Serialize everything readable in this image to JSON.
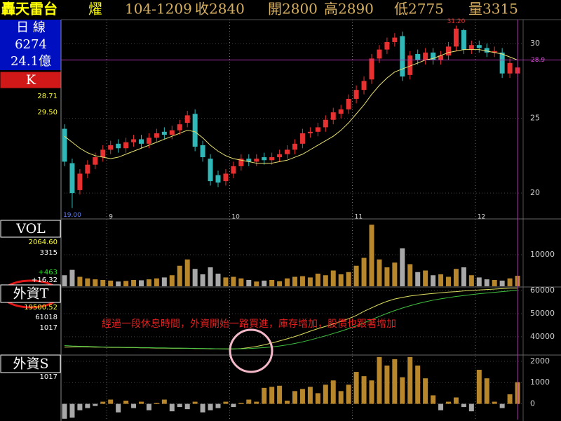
{
  "header": {
    "name": "轟天雷台",
    "mark": "燿",
    "date": "104-1209",
    "quotes": [
      "收2840",
      "開2800",
      "高2890",
      "低2775",
      "量3315"
    ]
  },
  "sidebar": {
    "period": "日 線",
    "code": "6274",
    "turnover": "24.1億"
  },
  "chart_data": [
    {
      "type": "candlestick",
      "title": "K",
      "readouts": [
        "28.71",
        "29.50"
      ],
      "readout_colors": [
        "#ffff40",
        "#ffff40"
      ],
      "categories": [
        null,
        null,
        null,
        null,
        null,
        null,
        "9",
        null,
        null,
        null,
        null,
        null,
        null,
        null,
        null,
        null,
        null,
        null,
        null,
        null,
        null,
        null,
        "10",
        null,
        null,
        null,
        null,
        null,
        null,
        null,
        null,
        null,
        null,
        null,
        null,
        null,
        null,
        null,
        "11",
        null,
        null,
        null,
        null,
        null,
        null,
        null,
        null,
        null,
        null,
        null,
        null,
        null,
        null,
        null,
        "12",
        null,
        null,
        null,
        null,
        null
      ],
      "open": [
        24.3,
        22.0,
        20.2,
        21.3,
        21.9,
        22.4,
        22.9,
        23.3,
        23.0,
        23.4,
        23.6,
        23.3,
        23.7,
        24.1,
        23.9,
        24.2,
        24.7,
        25.3,
        23.2,
        22.3,
        21.2,
        20.8,
        21.3,
        21.8,
        22.3,
        22.1,
        22.4,
        22.2,
        22.4,
        22.6,
        22.9,
        23.3,
        24.0,
        24.1,
        24.4,
        24.9,
        25.3,
        25.6,
        26.3,
        26.9,
        27.6,
        29.0,
        29.6,
        30.1,
        30.5,
        27.9,
        29.3,
        28.9,
        29.4,
        28.9,
        29.2,
        29.8,
        30.9,
        29.6,
        29.9,
        29.7,
        29.4,
        29.4,
        28.0,
        28.0
      ],
      "high": [
        24.6,
        22.3,
        21.6,
        22.2,
        22.7,
        23.2,
        23.5,
        23.6,
        23.7,
        23.9,
        23.9,
        24.0,
        24.3,
        24.4,
        24.5,
        24.9,
        25.5,
        25.6,
        23.5,
        22.6,
        21.5,
        21.6,
        22.1,
        22.6,
        22.6,
        22.6,
        22.7,
        22.7,
        22.9,
        23.2,
        23.6,
        24.3,
        24.4,
        24.7,
        25.2,
        25.7,
        25.9,
        26.6,
        27.2,
        27.8,
        29.3,
        29.9,
        30.4,
        30.7,
        30.8,
        29.5,
        29.6,
        29.7,
        29.7,
        29.5,
        30.1,
        31.2,
        31.0,
        30.2,
        30.2,
        30.0,
        29.8,
        29.7,
        29.0,
        28.9
      ],
      "low": [
        21.8,
        19.0,
        19.9,
        21.0,
        21.6,
        22.1,
        22.6,
        22.7,
        22.7,
        23.1,
        23.0,
        23.0,
        23.4,
        23.6,
        23.6,
        23.9,
        24.4,
        22.8,
        22.1,
        20.5,
        20.4,
        20.5,
        21.0,
        21.5,
        21.8,
        21.8,
        21.9,
        21.9,
        22.1,
        22.3,
        22.6,
        23.0,
        23.7,
        23.8,
        24.1,
        24.6,
        25.0,
        25.3,
        26.0,
        26.6,
        27.3,
        28.7,
        29.3,
        29.8,
        27.5,
        27.6,
        28.6,
        28.6,
        28.6,
        28.6,
        28.9,
        29.5,
        29.3,
        29.3,
        29.4,
        29.1,
        29.1,
        27.7,
        27.7,
        27.75
      ],
      "close": [
        22.1,
        20.0,
        21.3,
        21.9,
        22.4,
        22.9,
        23.2,
        23.0,
        23.4,
        23.6,
        23.3,
        23.7,
        24.0,
        23.9,
        24.2,
        24.6,
        25.2,
        23.1,
        22.4,
        20.8,
        20.7,
        21.3,
        21.8,
        22.3,
        22.1,
        22.3,
        22.2,
        22.4,
        22.6,
        22.9,
        23.3,
        24.0,
        24.1,
        24.4,
        24.9,
        25.4,
        25.6,
        26.3,
        26.9,
        27.5,
        29.0,
        29.6,
        30.1,
        30.4,
        27.8,
        29.2,
        28.9,
        29.4,
        28.9,
        29.2,
        29.8,
        31.0,
        29.6,
        29.9,
        29.7,
        29.4,
        29.5,
        28.0,
        28.7,
        28.4
      ],
      "ma": {
        "color": "#e8e070",
        "values": [
          23.8,
          23.4,
          23.0,
          22.7,
          22.5,
          22.4,
          22.3,
          22.4,
          22.6,
          22.8,
          23.0,
          23.2,
          23.4,
          23.6,
          23.8,
          24.0,
          24.2,
          24.1,
          23.7,
          23.2,
          22.8,
          22.5,
          22.3,
          22.2,
          22.1,
          22.0,
          22.0,
          22.0,
          22.1,
          22.2,
          22.4,
          22.6,
          22.9,
          23.2,
          23.5,
          23.8,
          24.2,
          24.7,
          25.3,
          25.9,
          26.6,
          27.2,
          27.7,
          28.1,
          28.3,
          28.5,
          28.7,
          28.9,
          29.0,
          29.2,
          29.4,
          29.5,
          29.6,
          29.6,
          29.6,
          29.5,
          29.4,
          29.3,
          29.1,
          28.9
        ]
      },
      "up_color": "#e83030",
      "down_color": "#30b8b8",
      "high_label": "31.20",
      "low_label": "19.00",
      "ref_line": 28.9,
      "ylim": [
        18.6,
        31.6
      ],
      "yticks": [
        20,
        25,
        30
      ],
      "grid": true
    },
    {
      "type": "bar",
      "title": "VOL",
      "readouts": [
        "2064.60",
        "3315",
        "+463",
        "+16.32"
      ],
      "readout_colors": [
        "#ffff40",
        "#ffffff",
        "#30e030",
        "#ffffff"
      ],
      "values": [
        3500,
        5200,
        3000,
        2500,
        2200,
        2000,
        1800,
        1500,
        1700,
        2000,
        1900,
        2200,
        2500,
        2800,
        3500,
        6500,
        8500,
        5500,
        3800,
        6000,
        4000,
        2800,
        3000,
        2500,
        2000,
        1500,
        1800,
        2000,
        1600,
        2500,
        3000,
        3200,
        2800,
        4000,
        3500,
        5000,
        3800,
        4500,
        6500,
        9000,
        19500,
        8500,
        6000,
        7500,
        12000,
        7000,
        4500,
        5000,
        3500,
        3800,
        3000,
        5500,
        6000,
        3500,
        2800,
        2200,
        2000,
        1800,
        2500,
        3315
      ],
      "up_color": "#b8862b",
      "down_color": "#a8a8a8",
      "ylim": [
        0,
        20000
      ],
      "yticks": [
        10000
      ],
      "grid": true
    },
    {
      "type": "line",
      "title": "外資T",
      "readouts": [
        "19500.52",
        "61018",
        "1017"
      ],
      "readout_colors": [
        "#ffff40",
        "#ffffff",
        "#ffffff"
      ],
      "annotation": "經過一段休息時間，外資開始一路買進，庫存增加，股價也跟著增加",
      "series": [
        {
          "color": "#e0e060",
          "values": [
            35500,
            35600,
            35700,
            35600,
            35500,
            35500,
            35400,
            35400,
            35300,
            35300,
            35200,
            35200,
            35100,
            35100,
            35000,
            35000,
            35000,
            34900,
            34900,
            34800,
            34800,
            34700,
            34700,
            34900,
            35300,
            35800,
            36500,
            37300,
            38200,
            39100,
            40100,
            41200,
            42400,
            43500,
            44500,
            45500,
            46600,
            47800,
            49200,
            51000,
            52500,
            54000,
            55300,
            56300,
            57000,
            57600,
            58000,
            58400,
            58700,
            59000,
            59300,
            59500,
            59800,
            60000,
            60200,
            60400,
            60600,
            60800,
            61000,
            61018
          ]
        },
        {
          "color": "#40c040",
          "values": [
            36200,
            36000,
            35900,
            35800,
            35700,
            35600,
            35500,
            35500,
            35400,
            35400,
            35300,
            35300,
            35200,
            35200,
            35100,
            35100,
            35000,
            35000,
            34900,
            34900,
            34800,
            34800,
            34800,
            34800,
            34900,
            35100,
            35300,
            35600,
            36000,
            36500,
            37100,
            37800,
            38600,
            39500,
            40400,
            41400,
            42400,
            43500,
            44700,
            46000,
            47400,
            48800,
            50100,
            51300,
            52400,
            53400,
            54300,
            55100,
            55800,
            56400,
            56900,
            57400,
            57800,
            58200,
            58600,
            58900,
            59200,
            59500,
            59800,
            60100
          ]
        }
      ],
      "ylim": [
        32400,
        61200
      ],
      "yticks": [
        40000,
        50000,
        60000
      ],
      "grid": true
    },
    {
      "type": "bar",
      "title": "外資S",
      "readouts": [
        "1017"
      ],
      "readout_colors": [
        "#ffffff"
      ],
      "values": [
        -700,
        -650,
        -300,
        -200,
        -100,
        100,
        200,
        -400,
        150,
        -200,
        100,
        -300,
        50,
        200,
        -350,
        -150,
        -250,
        100,
        -400,
        -300,
        -200,
        100,
        -150,
        50,
        200,
        100,
        750,
        800,
        850,
        150,
        600,
        700,
        800,
        500,
        900,
        1100,
        600,
        900,
        1500,
        1300,
        1100,
        2200,
        1800,
        2100,
        1250,
        2200,
        1800,
        1200,
        400,
        -300,
        100,
        300,
        -150,
        -350,
        1600,
        1200,
        100,
        -200,
        450,
        1017
      ],
      "color": "#b8862b",
      "negative_color": "#a8a8a8",
      "ylim": [
        -740,
        2260
      ],
      "yticks": [
        0,
        1000,
        2000
      ],
      "grid": true
    }
  ]
}
